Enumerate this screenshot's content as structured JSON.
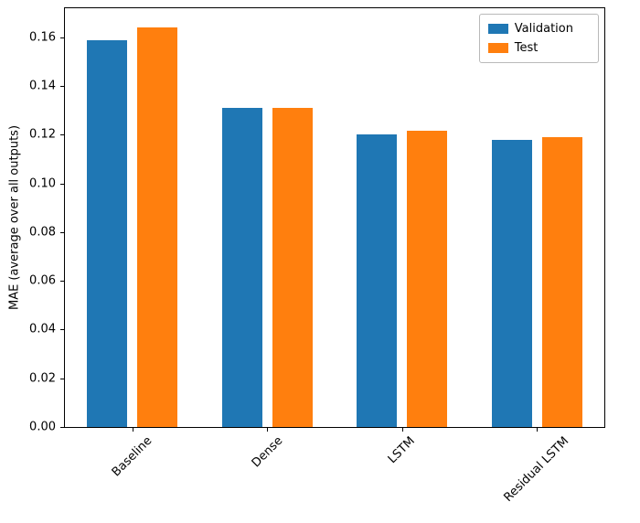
{
  "figure": {
    "background": "#ffffff"
  },
  "chart_data": {
    "type": "bar",
    "title": "",
    "xlabel": "",
    "ylabel": "MAE (average over all outputs)",
    "categories": [
      "Baseline",
      "Dense",
      "LSTM",
      "Residual LSTM"
    ],
    "series": [
      {
        "name": "Validation",
        "color": "#1f77b4",
        "values": [
          0.159,
          0.131,
          0.12,
          0.118
        ]
      },
      {
        "name": "Test",
        "color": "#ff7f0e",
        "values": [
          0.164,
          0.131,
          0.1215,
          0.119
        ]
      }
    ],
    "ylim": [
      0,
      0.172
    ],
    "yticks": [
      0.0,
      0.02,
      0.04,
      0.06,
      0.08,
      0.1,
      0.12,
      0.14,
      0.16
    ],
    "ytick_decimals": 2,
    "grid": false,
    "legend": {
      "position": "upper-right"
    },
    "x_tick_rotation_deg": 45
  }
}
